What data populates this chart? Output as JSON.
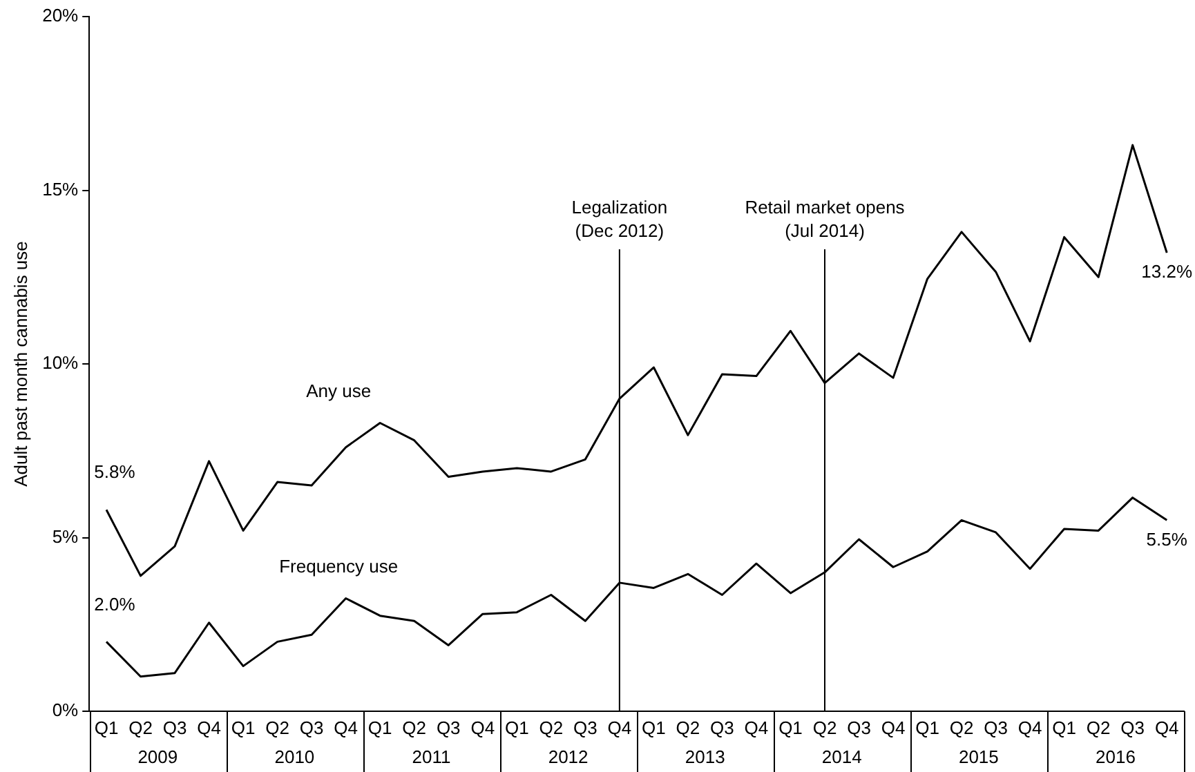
{
  "chart_data": {
    "type": "line",
    "ylabel": "Adult past month cannabis use",
    "categories": [
      "Q1",
      "Q2",
      "Q3",
      "Q4",
      "Q1",
      "Q2",
      "Q3",
      "Q4",
      "Q1",
      "Q2",
      "Q3",
      "Q4",
      "Q1",
      "Q2",
      "Q3",
      "Q4",
      "Q1",
      "Q2",
      "Q3",
      "Q4",
      "Q1",
      "Q2",
      "Q3",
      "Q4",
      "Q1",
      "Q2",
      "Q3",
      "Q4",
      "Q1",
      "Q2",
      "Q3",
      "Q4"
    ],
    "annotations": [
      "2009",
      "2010",
      "2011",
      "2012",
      "2013",
      "2014",
      "2015",
      "2016"
    ],
    "series": [
      {
        "name": "Any use",
        "color": "#000000",
        "values": [
          5.8,
          3.9,
          4.75,
          7.2,
          5.2,
          6.6,
          6.5,
          7.6,
          8.3,
          7.8,
          6.75,
          6.9,
          7.0,
          6.9,
          7.25,
          9.0,
          9.9,
          7.95,
          9.7,
          9.65,
          10.95,
          9.45,
          10.3,
          9.6,
          12.45,
          13.8,
          12.65,
          10.65,
          13.65,
          12.5,
          16.3,
          13.2
        ],
        "value_labels": [
          "5.8%",
          null,
          null,
          null,
          null,
          null,
          null,
          null,
          null,
          null,
          null,
          null,
          null,
          null,
          null,
          null,
          null,
          null,
          null,
          null,
          null,
          null,
          null,
          null,
          null,
          null,
          null,
          null,
          null,
          null,
          null,
          "13.2%"
        ]
      },
      {
        "name": "Frequency use",
        "color": "#000000",
        "values": [
          2.0,
          1.0,
          1.1,
          2.55,
          1.3,
          2.0,
          2.2,
          3.25,
          2.75,
          2.6,
          1.9,
          2.8,
          2.85,
          3.35,
          2.6,
          3.7,
          3.55,
          3.95,
          3.35,
          4.25,
          3.4,
          4.0,
          4.95,
          4.15,
          4.6,
          5.5,
          5.15,
          4.1,
          5.25,
          5.2,
          6.15,
          5.5
        ],
        "value_labels": [
          "2.0%",
          null,
          null,
          null,
          null,
          null,
          null,
          null,
          null,
          null,
          null,
          null,
          null,
          null,
          null,
          null,
          null,
          null,
          null,
          null,
          null,
          null,
          null,
          null,
          null,
          null,
          null,
          null,
          null,
          null,
          null,
          "5.5%"
        ]
      }
    ],
    "ylim": [
      0,
      20
    ],
    "yticks": [
      {
        "value": 0,
        "label": "0%"
      },
      {
        "value": 5,
        "label": "5%"
      },
      {
        "value": 10,
        "label": "10%"
      },
      {
        "value": 15,
        "label": "15%"
      },
      {
        "value": 20,
        "label": "20%"
      }
    ],
    "ref_lines": [
      {
        "axis": "x",
        "label": "Legalization\n(Dec 2012)",
        "color": "#000000"
      },
      {
        "axis": "x",
        "label": "Retail market opens\n(Jul 2014)",
        "color": "#000000"
      }
    ],
    "grid": false,
    "legend": false,
    "marker": "none",
    "line_style": "solid"
  }
}
